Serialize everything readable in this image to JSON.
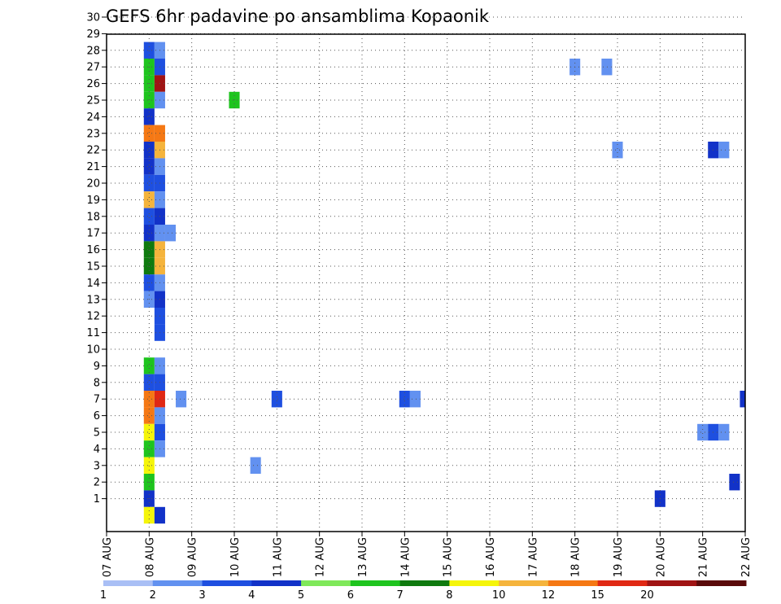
{
  "chart_data": {
    "type": "heatmap",
    "title": "GEFS 6hr padavine po ansamblima Kopaonik",
    "xlabel": "",
    "ylabel": "",
    "x_dates": [
      "07 AUG",
      "08 AUG",
      "09 AUG",
      "10 AUG",
      "11 AUG",
      "12 AUG",
      "13 AUG",
      "14 AUG",
      "15 AUG",
      "16 AUG",
      "17 AUG",
      "18 AUG",
      "19 AUG",
      "20 AUG",
      "21 AUG",
      "22 AUG"
    ],
    "x_steps_per_day": 4,
    "y_members": [
      1,
      2,
      3,
      4,
      5,
      6,
      7,
      8,
      9,
      10,
      11,
      12,
      13,
      14,
      15,
      16,
      17,
      18,
      19,
      20,
      21,
      22,
      23,
      24,
      25,
      26,
      27,
      28,
      29,
      30
    ],
    "grid": "dotted",
    "colorbar": {
      "placement": "bottom",
      "labels": [
        "1",
        "2",
        "3",
        "4",
        "5",
        "6",
        "7",
        "8",
        "10",
        "12",
        "15",
        "20"
      ],
      "colors": [
        "#a9bff5",
        "#6291f0",
        "#1e4fe0",
        "#1232c8",
        "#7fe85a",
        "#1ec41e",
        "#0f7a0f",
        "#f5f50a",
        "#f5b43c",
        "#f57814",
        "#e02814",
        "#a01414",
        "#5a0a0a"
      ]
    },
    "cells": [
      {
        "member": 30,
        "time": "08 AUG 00z",
        "class": 6
      },
      {
        "member": 30,
        "time": "08 AUG 06z",
        "class": 2
      },
      {
        "member": 30,
        "time": "15 AUG 06z",
        "class": 1
      },
      {
        "member": 28,
        "time": "08 AUG 00z",
        "class": 2
      },
      {
        "member": 28,
        "time": "08 AUG 06z",
        "class": 1
      },
      {
        "member": 27,
        "time": "08 AUG 00z",
        "class": 5
      },
      {
        "member": 27,
        "time": "08 AUG 06z",
        "class": 2
      },
      {
        "member": 27,
        "time": "18 AUG 00z",
        "class": 1
      },
      {
        "member": 27,
        "time": "18 AUG 18z",
        "class": 1
      },
      {
        "member": 26,
        "time": "08 AUG 00z",
        "class": 5
      },
      {
        "member": 26,
        "time": "08 AUG 06z",
        "class": 11
      },
      {
        "member": 25,
        "time": "08 AUG 00z",
        "class": 5
      },
      {
        "member": 25,
        "time": "08 AUG 06z",
        "class": 1
      },
      {
        "member": 25,
        "time": "10 AUG 00z",
        "class": 5
      },
      {
        "member": 24,
        "time": "08 AUG 00z",
        "class": 3
      },
      {
        "member": 23,
        "time": "08 AUG 00z",
        "class": 9
      },
      {
        "member": 23,
        "time": "08 AUG 06z",
        "class": 9
      },
      {
        "member": 22,
        "time": "08 AUG 00z",
        "class": 3
      },
      {
        "member": 22,
        "time": "08 AUG 06z",
        "class": 8
      },
      {
        "member": 22,
        "time": "19 AUG 00z",
        "class": 1
      },
      {
        "member": 22,
        "time": "21 AUG 06z",
        "class": 3
      },
      {
        "member": 22,
        "time": "21 AUG 12z",
        "class": 1
      },
      {
        "member": 21,
        "time": "08 AUG 00z",
        "class": 3
      },
      {
        "member": 21,
        "time": "08 AUG 06z",
        "class": 1
      },
      {
        "member": 20,
        "time": "08 AUG 00z",
        "class": 2
      },
      {
        "member": 20,
        "time": "08 AUG 06z",
        "class": 2
      },
      {
        "member": 19,
        "time": "08 AUG 00z",
        "class": 8
      },
      {
        "member": 19,
        "time": "08 AUG 06z",
        "class": 1
      },
      {
        "member": 18,
        "time": "08 AUG 00z",
        "class": 2
      },
      {
        "member": 18,
        "time": "08 AUG 06z",
        "class": 3
      },
      {
        "member": 17,
        "time": "08 AUG 00z",
        "class": 3
      },
      {
        "member": 17,
        "time": "08 AUG 06z",
        "class": 1
      },
      {
        "member": 17,
        "time": "08 AUG 12z",
        "class": 1
      },
      {
        "member": 16,
        "time": "08 AUG 00z",
        "class": 6
      },
      {
        "member": 16,
        "time": "08 AUG 06z",
        "class": 8
      },
      {
        "member": 15,
        "time": "08 AUG 00z",
        "class": 6
      },
      {
        "member": 15,
        "time": "08 AUG 06z",
        "class": 8
      },
      {
        "member": 14,
        "time": "08 AUG 00z",
        "class": 2
      },
      {
        "member": 14,
        "time": "08 AUG 06z",
        "class": 1
      },
      {
        "member": 13,
        "time": "08 AUG 00z",
        "class": 1
      },
      {
        "member": 13,
        "time": "08 AUG 06z",
        "class": 3
      },
      {
        "member": 12,
        "time": "08 AUG 06z",
        "class": 2
      },
      {
        "member": 11,
        "time": "08 AUG 06z",
        "class": 2
      },
      {
        "member": 9,
        "time": "08 AUG 00z",
        "class": 5
      },
      {
        "member": 9,
        "time": "08 AUG 06z",
        "class": 1
      },
      {
        "member": 8,
        "time": "08 AUG 00z",
        "class": 2
      },
      {
        "member": 8,
        "time": "08 AUG 06z",
        "class": 2
      },
      {
        "member": 7,
        "time": "08 AUG 00z",
        "class": 9
      },
      {
        "member": 7,
        "time": "08 AUG 06z",
        "class": 10
      },
      {
        "member": 7,
        "time": "08 AUG 18z",
        "class": 1
      },
      {
        "member": 7,
        "time": "11 AUG 00z",
        "class": 2
      },
      {
        "member": 7,
        "time": "14 AUG 00z",
        "class": 2
      },
      {
        "member": 7,
        "time": "14 AUG 06z",
        "class": 1
      },
      {
        "member": 7,
        "time": "22 AUG 00z",
        "class": 3
      },
      {
        "member": 6,
        "time": "08 AUG 00z",
        "class": 9
      },
      {
        "member": 6,
        "time": "08 AUG 06z",
        "class": 1
      },
      {
        "member": 5,
        "time": "08 AUG 00z",
        "class": 7
      },
      {
        "member": 5,
        "time": "08 AUG 06z",
        "class": 2
      },
      {
        "member": 5,
        "time": "21 AUG 00z",
        "class": 1
      },
      {
        "member": 5,
        "time": "21 AUG 06z",
        "class": 2
      },
      {
        "member": 5,
        "time": "21 AUG 12z",
        "class": 1
      },
      {
        "member": 4,
        "time": "08 AUG 00z",
        "class": 5
      },
      {
        "member": 4,
        "time": "08 AUG 06z",
        "class": 1
      },
      {
        "member": 3,
        "time": "08 AUG 00z",
        "class": 7
      },
      {
        "member": 3,
        "time": "10 AUG 12z",
        "class": 1
      },
      {
        "member": 2,
        "time": "08 AUG 00z",
        "class": 5
      },
      {
        "member": 2,
        "time": "21 AUG 18z",
        "class": 3
      },
      {
        "member": 1,
        "time": "08 AUG 00z",
        "class": 3
      },
      {
        "member": 1,
        "time": "20 AUG 00z",
        "class": 3
      },
      {
        "member": 0,
        "time": "08 AUG 00z",
        "class": 7
      },
      {
        "member": 0,
        "time": "08 AUG 06z",
        "class": 3
      }
    ]
  }
}
